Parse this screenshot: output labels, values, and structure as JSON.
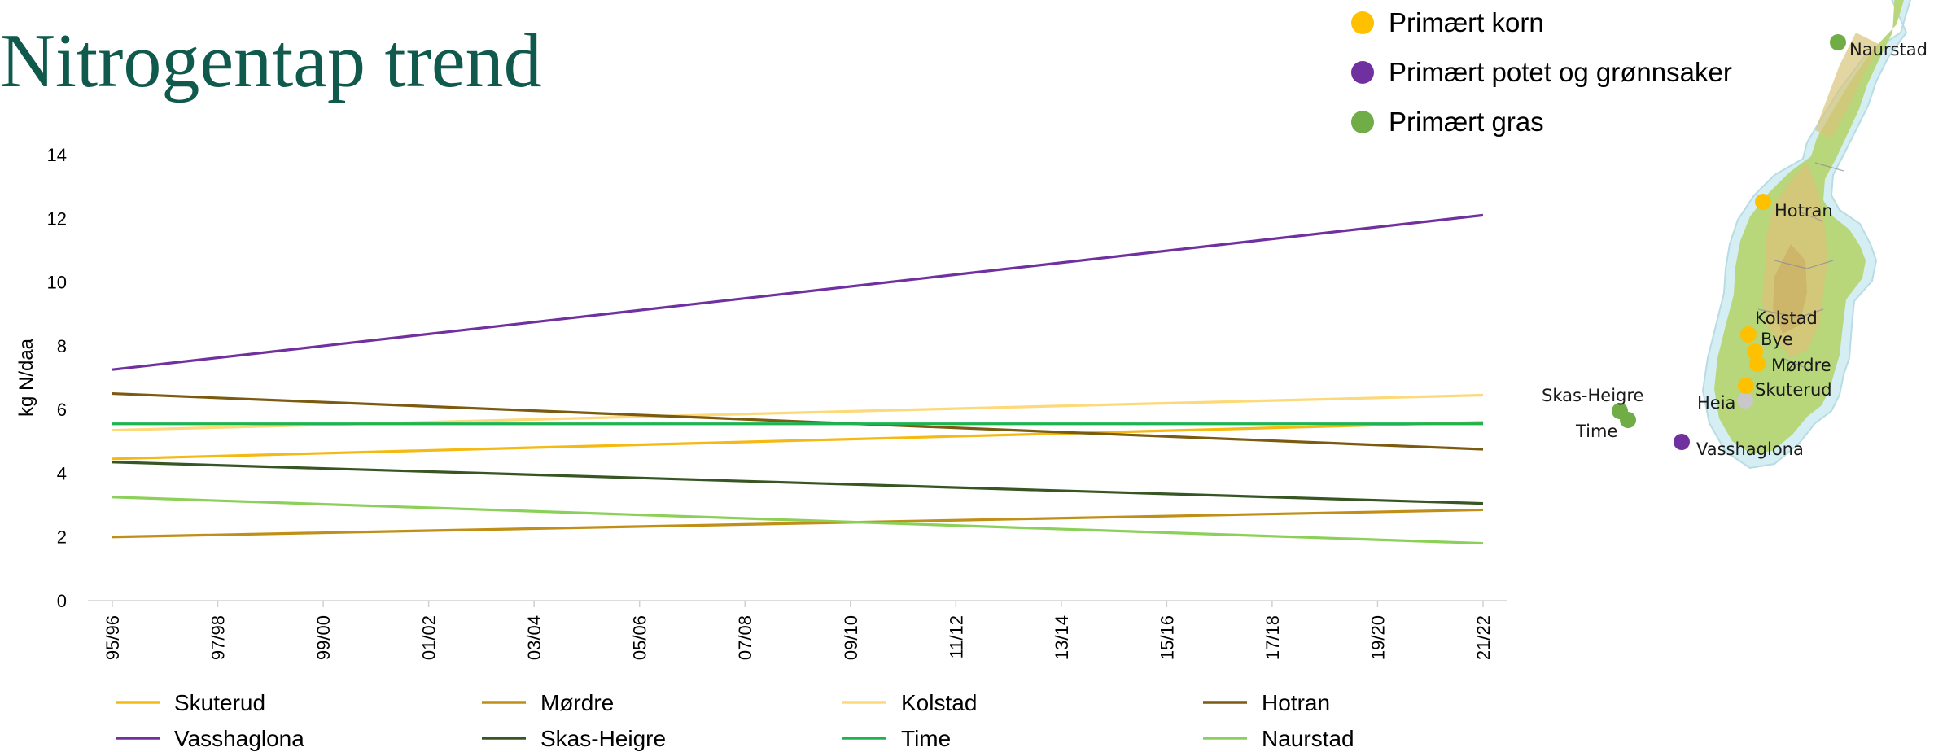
{
  "title": "Nitrogentap trend",
  "chart_data": {
    "type": "line",
    "title": "Nitrogentap trend",
    "xlabel": "",
    "ylabel": "kg N/daa",
    "ylim": [
      0,
      14
    ],
    "yticks": [
      0,
      2,
      4,
      6,
      8,
      10,
      12,
      14
    ],
    "categories": [
      "95/96",
      "97/98",
      "99/00",
      "01/02",
      "03/04",
      "05/06",
      "07/08",
      "09/10",
      "11/12",
      "13/14",
      "15/16",
      "17/18",
      "19/20",
      "21/22"
    ],
    "grid": false,
    "legend_position": "bottom",
    "series": [
      {
        "name": "Skuterud",
        "color": "#f5b914",
        "x": [
          "95/96",
          "21/22"
        ],
        "values": [
          4.45,
          5.6
        ]
      },
      {
        "name": "Mørdre",
        "color": "#bf8f17",
        "x": [
          "95/96",
          "21/22"
        ],
        "values": [
          2.0,
          2.85
        ]
      },
      {
        "name": "Kolstad",
        "color": "#fcd97a",
        "x": [
          "95/96",
          "21/22"
        ],
        "values": [
          5.35,
          6.45
        ]
      },
      {
        "name": "Hotran",
        "color": "#7a5b10",
        "x": [
          "95/96",
          "21/22"
        ],
        "values": [
          6.5,
          4.75
        ]
      },
      {
        "name": "Vasshaglona",
        "color": "#7030a0",
        "x": [
          "95/96",
          "21/22"
        ],
        "values": [
          7.25,
          12.1
        ]
      },
      {
        "name": "Skas-Heigre",
        "color": "#375623",
        "x": [
          "95/96",
          "21/22"
        ],
        "values": [
          4.35,
          3.05
        ]
      },
      {
        "name": "Time",
        "color": "#1db350",
        "x": [
          "95/96",
          "21/22"
        ],
        "values": [
          5.55,
          5.55
        ]
      },
      {
        "name": "Naurstad",
        "color": "#8cd05a",
        "x": [
          "95/96",
          "21/22"
        ],
        "values": [
          3.25,
          1.8
        ]
      }
    ]
  },
  "map_legend": [
    {
      "label": "Primært korn",
      "color": "#ffc000"
    },
    {
      "label": "Primært potet og grønnsaker",
      "color": "#7030a0"
    },
    {
      "label": "Primært gras",
      "color": "#70ad47"
    }
  ],
  "map": {
    "icon": "norway-map-icon",
    "sites": [
      {
        "name": "Naurstad",
        "color": "#70ad47"
      },
      {
        "name": "Hotran",
        "color": "#ffc000"
      },
      {
        "name": "Kolstad",
        "color": "#ffc000"
      },
      {
        "name": "Bye",
        "color": "#ffc000"
      },
      {
        "name": "Mørdre",
        "color": "#ffc000"
      },
      {
        "name": "Skuterud",
        "color": "#ffc000"
      },
      {
        "name": "Heia",
        "color": "#c8c8c8"
      },
      {
        "name": "Skas-Heigre",
        "color": "#70ad47"
      },
      {
        "name": "Time",
        "color": "#70ad47"
      },
      {
        "name": "Vasshaglona",
        "color": "#7030a0"
      }
    ]
  }
}
